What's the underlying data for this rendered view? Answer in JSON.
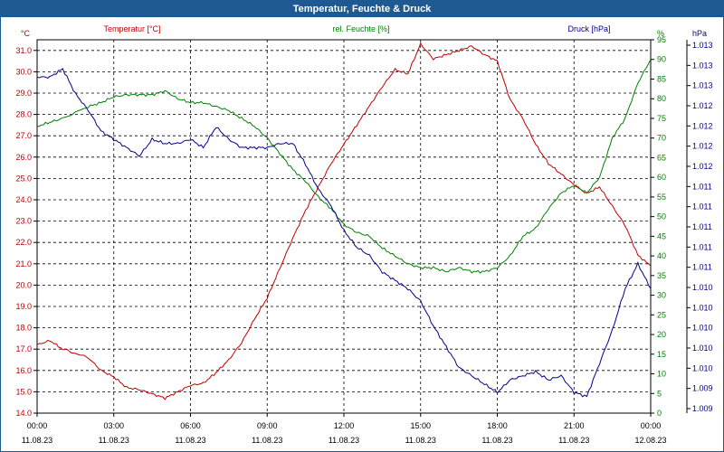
{
  "window": {
    "title": "Temperatur, Feuchte & Druck"
  },
  "chart_data": {
    "type": "line",
    "title": "Temperatur, Feuchte & Druck",
    "x": {
      "ticks": [
        {
          "time": "00:00",
          "date": "11.08.23"
        },
        {
          "time": "03:00",
          "date": "11.08.23"
        },
        {
          "time": "06:00",
          "date": "11.08.23"
        },
        {
          "time": "09:00",
          "date": "11.08.23"
        },
        {
          "time": "12:00",
          "date": "11.08.23"
        },
        {
          "time": "15:00",
          "date": "11.08.23"
        },
        {
          "time": "18:00",
          "date": "11.08.23"
        },
        {
          "time": "21:00",
          "date": "11.08.23"
        },
        {
          "time": "00:00",
          "date": "12.08.23"
        }
      ],
      "range_hours": [
        0,
        24
      ]
    },
    "axes": {
      "temperature": {
        "label": "Temperatur [°C]",
        "unit": "°C",
        "range": [
          14.0,
          31.5
        ],
        "step": 1,
        "color": "#c00000",
        "ticks": [
          "14.0",
          "15.0",
          "16.0",
          "17.0",
          "18.0",
          "19.0",
          "20.0",
          "21.0",
          "22.0",
          "23.0",
          "24.0",
          "25.0",
          "26.0",
          "27.0",
          "28.0",
          "29.0",
          "30.0",
          "31.0"
        ]
      },
      "humidity": {
        "label": "rel. Feuchte [%]",
        "unit": "%",
        "range": [
          0,
          95
        ],
        "step": 5,
        "color": "#008000",
        "ticks": [
          "0",
          "5",
          "10",
          "15",
          "20",
          "25",
          "30",
          "35",
          "40",
          "45",
          "50",
          "55",
          "60",
          "65",
          "70",
          "75",
          "80",
          "85",
          "90",
          "95"
        ]
      },
      "pressure": {
        "label": "Druck [hPa]",
        "unit": "hPa",
        "range": [
          1009.0,
          1013.5
        ],
        "color": "#00008b",
        "ticks": [
          "1.009",
          "1.009",
          "1.010",
          "1.010",
          "1.010",
          "1.010",
          "1.010",
          "1.011",
          "1.011",
          "1.011",
          "1.011",
          "1.011",
          "1.012",
          "1.012",
          "1.012",
          "1.012",
          "1.013",
          "1.013",
          "1.013"
        ]
      }
    },
    "grid": true,
    "series": [
      {
        "name": "Temperatur [°C]",
        "axis": "temperature",
        "color": "#c00000",
        "points": [
          [
            0,
            17.2
          ],
          [
            0.5,
            17.4
          ],
          [
            1,
            17.0
          ],
          [
            2,
            16.6
          ],
          [
            2.5,
            16.0
          ],
          [
            3,
            15.7
          ],
          [
            3.5,
            15.2
          ],
          [
            4,
            15.1
          ],
          [
            4.5,
            14.9
          ],
          [
            5,
            14.7
          ],
          [
            5.5,
            15.0
          ],
          [
            6,
            15.3
          ],
          [
            6.5,
            15.4
          ],
          [
            7,
            15.9
          ],
          [
            7.5,
            16.5
          ],
          [
            8,
            17.3
          ],
          [
            8.5,
            18.4
          ],
          [
            9,
            19.4
          ],
          [
            9.5,
            20.8
          ],
          [
            10,
            22.2
          ],
          [
            10.5,
            23.5
          ],
          [
            11,
            24.6
          ],
          [
            11.5,
            25.7
          ],
          [
            12,
            26.6
          ],
          [
            12.5,
            27.5
          ],
          [
            13,
            28.4
          ],
          [
            13.5,
            29.3
          ],
          [
            14,
            30.1
          ],
          [
            14.5,
            29.9
          ],
          [
            15,
            31.3
          ],
          [
            15.5,
            30.6
          ],
          [
            16,
            30.8
          ],
          [
            16.5,
            31.0
          ],
          [
            17,
            31.2
          ],
          [
            17.5,
            30.8
          ],
          [
            18,
            30.5
          ],
          [
            18.5,
            28.7
          ],
          [
            19,
            27.8
          ],
          [
            19.5,
            26.6
          ],
          [
            20,
            25.7
          ],
          [
            20.5,
            25.2
          ],
          [
            21,
            24.7
          ],
          [
            21.5,
            24.3
          ],
          [
            22,
            24.6
          ],
          [
            22.5,
            23.7
          ],
          [
            23,
            22.8
          ],
          [
            23.5,
            21.4
          ],
          [
            24,
            20.9
          ]
        ]
      },
      {
        "name": "rel. Feuchte [%]",
        "axis": "humidity",
        "color": "#008000",
        "points": [
          [
            0,
            73
          ],
          [
            0.5,
            74
          ],
          [
            1,
            75
          ],
          [
            2,
            78
          ],
          [
            2.5,
            79
          ],
          [
            3,
            80.5
          ],
          [
            3.5,
            81
          ],
          [
            4,
            81
          ],
          [
            4.5,
            81
          ],
          [
            5,
            82
          ],
          [
            5.5,
            80
          ],
          [
            6,
            79
          ],
          [
            6.5,
            79
          ],
          [
            7,
            78
          ],
          [
            7.5,
            77
          ],
          [
            8,
            75
          ],
          [
            8.5,
            73
          ],
          [
            9,
            70
          ],
          [
            9.5,
            66
          ],
          [
            10,
            62
          ],
          [
            10.5,
            59
          ],
          [
            11,
            55
          ],
          [
            11.5,
            52
          ],
          [
            12,
            48
          ],
          [
            12.5,
            46
          ],
          [
            13,
            45
          ],
          [
            13.5,
            42
          ],
          [
            14,
            40
          ],
          [
            14.5,
            38
          ],
          [
            15,
            37
          ],
          [
            15.5,
            37
          ],
          [
            16,
            36
          ],
          [
            16.5,
            37
          ],
          [
            17,
            36
          ],
          [
            17.5,
            36
          ],
          [
            18,
            37
          ],
          [
            18.5,
            40
          ],
          [
            19,
            45
          ],
          [
            19.5,
            47
          ],
          [
            20,
            52
          ],
          [
            20.5,
            56
          ],
          [
            21,
            58
          ],
          [
            21.5,
            56
          ],
          [
            22,
            60
          ],
          [
            22.5,
            70
          ],
          [
            23,
            75
          ],
          [
            23.5,
            84
          ],
          [
            24,
            90
          ]
        ]
      },
      {
        "name": "Druck [hPa]",
        "axis": "pressure",
        "color": "#00008b",
        "points": [
          [
            0,
            1013.05
          ],
          [
            0.5,
            1013.05
          ],
          [
            1,
            1013.15
          ],
          [
            1.5,
            1012.85
          ],
          [
            2,
            1012.65
          ],
          [
            2.5,
            1012.4
          ],
          [
            3,
            1012.3
          ],
          [
            3.5,
            1012.2
          ],
          [
            4,
            1012.1
          ],
          [
            4.5,
            1012.3
          ],
          [
            5,
            1012.25
          ],
          [
            5.5,
            1012.25
          ],
          [
            6,
            1012.3
          ],
          [
            6.5,
            1012.2
          ],
          [
            7,
            1012.45
          ],
          [
            7.5,
            1012.3
          ],
          [
            8,
            1012.2
          ],
          [
            8.5,
            1012.2
          ],
          [
            9,
            1012.2
          ],
          [
            9.5,
            1012.25
          ],
          [
            10,
            1012.25
          ],
          [
            10.5,
            1012.0
          ],
          [
            11,
            1011.7
          ],
          [
            11.5,
            1011.5
          ],
          [
            12,
            1011.2
          ],
          [
            12.5,
            1011.0
          ],
          [
            13,
            1010.9
          ],
          [
            13.5,
            1010.7
          ],
          [
            14,
            1010.6
          ],
          [
            14.5,
            1010.5
          ],
          [
            15,
            1010.35
          ],
          [
            15.5,
            1010.05
          ],
          [
            16,
            1009.8
          ],
          [
            16.5,
            1009.55
          ],
          [
            17,
            1009.45
          ],
          [
            17.5,
            1009.35
          ],
          [
            18,
            1009.25
          ],
          [
            18.5,
            1009.4
          ],
          [
            19,
            1009.45
          ],
          [
            19.5,
            1009.5
          ],
          [
            20,
            1009.4
          ],
          [
            20.5,
            1009.45
          ],
          [
            21,
            1009.25
          ],
          [
            21.5,
            1009.2
          ],
          [
            22,
            1009.6
          ],
          [
            22.5,
            1010.0
          ],
          [
            23,
            1010.5
          ],
          [
            23.5,
            1010.8
          ],
          [
            24,
            1010.5
          ]
        ]
      }
    ]
  }
}
